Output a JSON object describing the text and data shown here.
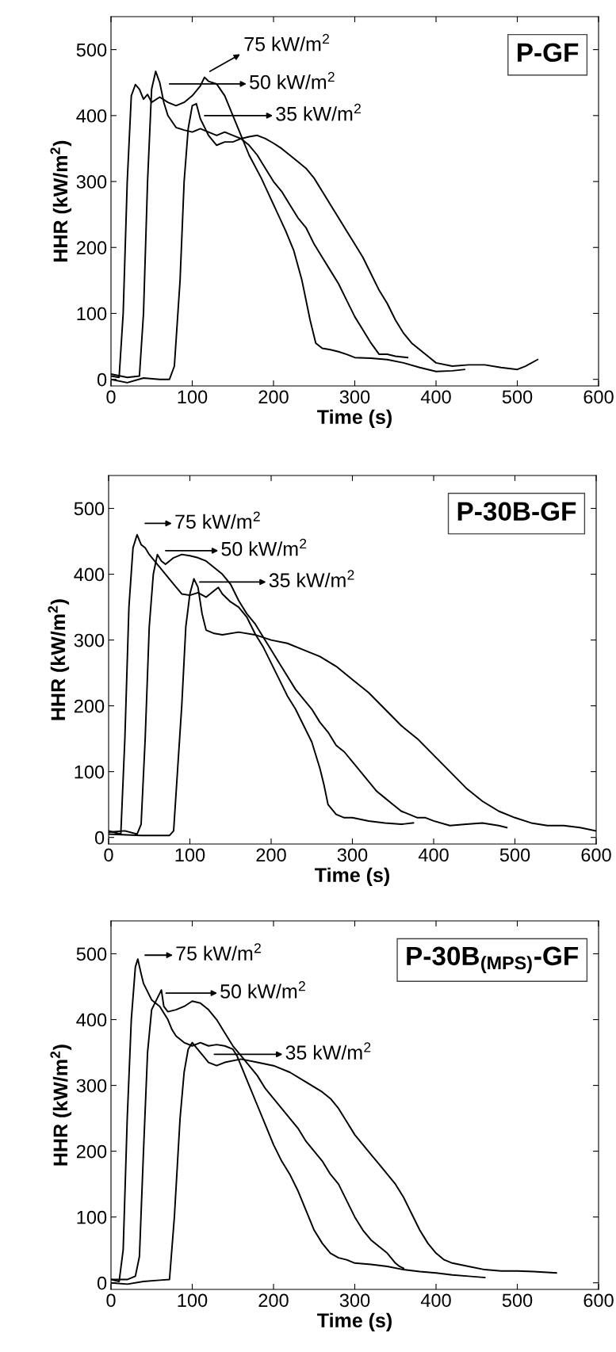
{
  "chart_data": [
    {
      "type": "line",
      "title": "P-GF",
      "xlabel": "Time (s)",
      "ylabel": "HHR (kW/m$^{2}$)",
      "xlim": [
        0,
        600
      ],
      "ylim": [
        -10,
        550
      ],
      "xticks": [
        0,
        100,
        200,
        300,
        400,
        500,
        600
      ],
      "yticks": [
        0,
        100,
        200,
        300,
        400,
        500
      ],
      "grid": false,
      "legend": false,
      "line_style": "solid",
      "series": [
        {
          "color": "#000000",
          "x": [
            0,
            10,
            15,
            20,
            25,
            30,
            35,
            40,
            45,
            50,
            60,
            70,
            80,
            90,
            100,
            110,
            115,
            120,
            130,
            140,
            150,
            160,
            170,
            185,
            200,
            215,
            225,
            235,
            245,
            252,
            260,
            270,
            280,
            290,
            300,
            320,
            340,
            360,
            380,
            400,
            420,
            435
          ],
          "values": [
            5,
            3,
            100,
            300,
            430,
            447,
            440,
            425,
            432,
            420,
            428,
            420,
            415,
            420,
            430,
            445,
            458,
            452,
            448,
            430,
            400,
            370,
            340,
            305,
            265,
            225,
            195,
            150,
            90,
            55,
            47,
            45,
            42,
            38,
            33,
            32,
            30,
            25,
            18,
            12,
            13,
            15
          ]
        },
        {
          "color": "#000000",
          "x": [
            0,
            20,
            35,
            40,
            45,
            50,
            55,
            60,
            65,
            70,
            80,
            90,
            100,
            110,
            120,
            130,
            140,
            150,
            160,
            170,
            180,
            190,
            200,
            210,
            220,
            230,
            240,
            250,
            260,
            270,
            280,
            290,
            300,
            310,
            320,
            330,
            340,
            350,
            365
          ],
          "values": [
            8,
            3,
            5,
            100,
            300,
            440,
            467,
            450,
            420,
            400,
            382,
            378,
            375,
            380,
            375,
            370,
            375,
            370,
            365,
            355,
            340,
            320,
            300,
            285,
            265,
            245,
            230,
            205,
            185,
            165,
            145,
            120,
            95,
            75,
            55,
            38,
            38,
            35,
            33
          ]
        },
        {
          "color": "#000000",
          "x": [
            0,
            20,
            40,
            60,
            72,
            78,
            85,
            90,
            95,
            100,
            105,
            110,
            120,
            130,
            140,
            150,
            160,
            170,
            180,
            190,
            200,
            210,
            220,
            230,
            240,
            250,
            260,
            270,
            280,
            290,
            300,
            310,
            320,
            330,
            340,
            350,
            360,
            370,
            380,
            390,
            400,
            420,
            440,
            460,
            480,
            500,
            510,
            525
          ],
          "values": [
            0,
            -5,
            2,
            0,
            0,
            20,
            150,
            300,
            380,
            415,
            418,
            395,
            370,
            355,
            360,
            360,
            365,
            368,
            370,
            365,
            358,
            350,
            340,
            330,
            320,
            305,
            285,
            265,
            245,
            225,
            205,
            185,
            160,
            135,
            115,
            90,
            70,
            55,
            45,
            35,
            25,
            20,
            22,
            22,
            18,
            15,
            20,
            30
          ]
        }
      ],
      "annotations": [
        "75 kW/m$^{2}$",
        "50 kW/m$^{2}$",
        "35 kW/m$^{2}$"
      ]
    },
    {
      "type": "line",
      "title": "P-30B-GF",
      "xlabel": "Time (s)",
      "ylabel": "HHR (kW/m$^{2}$)",
      "xlim": [
        0,
        600
      ],
      "ylim": [
        -10,
        550
      ],
      "xticks": [
        0,
        100,
        200,
        300,
        400,
        500,
        600
      ],
      "yticks": [
        0,
        100,
        200,
        300,
        400,
        500
      ],
      "grid": false,
      "legend": false,
      "line_style": "solid",
      "series": [
        {
          "color": "#000000",
          "x": [
            0,
            15,
            20,
            25,
            30,
            35,
            40,
            45,
            50,
            60,
            70,
            80,
            90,
            100,
            110,
            120,
            130,
            135,
            140,
            150,
            160,
            170,
            180,
            190,
            200,
            210,
            220,
            230,
            240,
            250,
            260,
            265,
            270,
            280,
            290,
            300,
            320,
            340,
            360,
            375
          ],
          "values": [
            10,
            5,
            150,
            350,
            440,
            460,
            445,
            440,
            430,
            415,
            400,
            385,
            370,
            368,
            372,
            365,
            375,
            380,
            370,
            358,
            350,
            335,
            310,
            290,
            265,
            240,
            215,
            195,
            170,
            145,
            105,
            80,
            50,
            35,
            30,
            30,
            25,
            22,
            20,
            22
          ]
        },
        {
          "color": "#000000",
          "x": [
            0,
            20,
            35,
            40,
            45,
            50,
            55,
            60,
            65,
            70,
            80,
            90,
            100,
            110,
            120,
            130,
            140,
            150,
            160,
            170,
            180,
            190,
            200,
            210,
            220,
            230,
            240,
            250,
            260,
            270,
            280,
            290,
            300,
            310,
            320,
            330,
            340,
            350,
            360,
            370,
            380,
            390,
            400,
            420,
            440,
            460,
            480,
            490
          ],
          "values": [
            8,
            10,
            5,
            20,
            150,
            320,
            400,
            430,
            420,
            415,
            425,
            430,
            428,
            425,
            420,
            410,
            400,
            385,
            360,
            340,
            325,
            305,
            285,
            265,
            245,
            225,
            210,
            195,
            175,
            160,
            140,
            130,
            115,
            100,
            85,
            70,
            60,
            50,
            40,
            35,
            30,
            30,
            25,
            18,
            20,
            22,
            18,
            15
          ]
        },
        {
          "color": "#000000",
          "x": [
            0,
            40,
            75,
            80,
            90,
            95,
            100,
            105,
            110,
            115,
            120,
            130,
            140,
            160,
            180,
            200,
            220,
            240,
            260,
            280,
            300,
            320,
            340,
            360,
            380,
            400,
            420,
            440,
            460,
            480,
            500,
            520,
            540,
            560,
            580,
            600
          ],
          "values": [
            5,
            3,
            3,
            10,
            200,
            320,
            370,
            393,
            380,
            340,
            315,
            310,
            308,
            312,
            308,
            300,
            295,
            285,
            275,
            260,
            240,
            220,
            195,
            170,
            150,
            125,
            100,
            75,
            55,
            40,
            30,
            22,
            18,
            18,
            15,
            10
          ]
        }
      ],
      "annotations": [
        "75 kW/m$^{2}$",
        "50 kW/m$^{2}$",
        "35 kW/m$^{2}$"
      ]
    },
    {
      "type": "line",
      "title": "P-30B$_{(MPS)}$-GF",
      "xlabel": "Time (s)",
      "ylabel": "HHR (kW/m$^{2}$)",
      "xlim": [
        0,
        600
      ],
      "ylim": [
        -10,
        550
      ],
      "xticks": [
        0,
        100,
        200,
        300,
        400,
        500,
        600
      ],
      "yticks": [
        0,
        100,
        200,
        300,
        400,
        500
      ],
      "grid": false,
      "legend": false,
      "line_style": "solid",
      "series": [
        {
          "color": "#000000",
          "x": [
            0,
            10,
            15,
            20,
            25,
            30,
            33,
            37,
            40,
            50,
            60,
            70,
            75,
            80,
            90,
            100,
            110,
            120,
            130,
            140,
            150,
            155,
            160,
            170,
            180,
            190,
            200,
            210,
            220,
            230,
            240,
            250,
            260,
            270,
            280,
            290,
            300,
            320,
            340,
            360,
            380,
            400,
            420,
            440,
            460
          ],
          "values": [
            5,
            2,
            50,
            250,
            400,
            480,
            492,
            470,
            455,
            430,
            420,
            400,
            385,
            375,
            365,
            360,
            365,
            360,
            362,
            360,
            355,
            345,
            330,
            300,
            270,
            240,
            210,
            185,
            165,
            140,
            110,
            80,
            60,
            45,
            38,
            35,
            30,
            28,
            25,
            20,
            17,
            15,
            12,
            10,
            8
          ]
        },
        {
          "color": "#000000",
          "x": [
            0,
            20,
            30,
            35,
            40,
            45,
            50,
            60,
            62,
            65,
            70,
            80,
            90,
            100,
            110,
            120,
            130,
            140,
            150,
            160,
            170,
            180,
            190,
            200,
            210,
            220,
            230,
            240,
            250,
            260,
            270,
            280,
            290,
            300,
            310,
            320,
            330,
            340,
            350,
            355,
            360
          ],
          "values": [
            5,
            5,
            10,
            40,
            200,
            350,
            415,
            440,
            445,
            420,
            412,
            415,
            420,
            428,
            425,
            415,
            400,
            380,
            360,
            345,
            330,
            315,
            295,
            280,
            265,
            250,
            235,
            215,
            200,
            185,
            165,
            150,
            125,
            100,
            80,
            65,
            55,
            45,
            30,
            25,
            22
          ]
        },
        {
          "color": "#000000",
          "x": [
            0,
            20,
            40,
            60,
            72,
            78,
            85,
            90,
            95,
            100,
            110,
            120,
            130,
            140,
            160,
            180,
            200,
            220,
            240,
            260,
            270,
            280,
            290,
            300,
            310,
            320,
            330,
            340,
            350,
            360,
            370,
            380,
            390,
            400,
            410,
            420,
            440,
            460,
            480,
            500,
            520,
            548
          ],
          "values": [
            0,
            -2,
            2,
            4,
            5,
            100,
            250,
            320,
            355,
            365,
            350,
            335,
            330,
            335,
            340,
            335,
            330,
            320,
            305,
            290,
            280,
            265,
            245,
            225,
            210,
            195,
            180,
            165,
            150,
            130,
            105,
            80,
            60,
            45,
            35,
            30,
            25,
            20,
            18,
            18,
            17,
            15
          ]
        }
      ],
      "annotations": [
        "75 kW/m$^{2}$",
        "50 kW/m$^{2}$",
        "35 kW/m$^{2}$"
      ]
    }
  ]
}
